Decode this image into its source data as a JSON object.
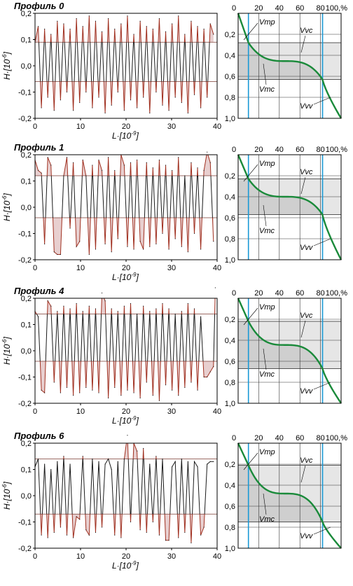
{
  "figure": {
    "ylabel": "H·[10",
    "ylabel_exp": "-6",
    "ylabel_close": "]",
    "xlabel": "L·[10",
    "xlabel_exp": "-9",
    "xlabel_close": "]",
    "percent_label": "100,%",
    "right_ticks_x": [
      "0",
      "20",
      "40",
      "60",
      "80"
    ],
    "right_ticks_y": [
      "0,2",
      "0,4",
      "0,6",
      "0,8",
      "1,0"
    ],
    "left_ticks_x": [
      "0",
      "10",
      "20",
      "30",
      "40"
    ],
    "left_ticks_y": [
      "0,2",
      "0,1",
      "0,0",
      "-0,1",
      "-0,2"
    ],
    "annotations": {
      "vmp": "Vmp",
      "vvc": "Vvc",
      "vmc": "Vmc",
      "vvv": "Vvv"
    },
    "colors": {
      "profile_line": "#1a1a1a",
      "fill_peaks": "#e8cfcf",
      "fill_edge": "#a03020",
      "bearing_curve": "#1a8a3a",
      "mr_lines": "#1a9ad6",
      "zone_fill": "#e6e6e6"
    }
  },
  "chart_data": [
    {
      "type": "line",
      "title": "Профиль 0",
      "xlim": [
        0,
        40
      ],
      "ylim": [
        -0.2,
        0.2
      ],
      "upper_threshold": 0.09,
      "lower_threshold": -0.06,
      "x": [
        0,
        0.7,
        1.4,
        2.1,
        2.8,
        3.5,
        4.2,
        4.9,
        5.6,
        6.3,
        7,
        7.7,
        8.4,
        9.1,
        9.8,
        10.5,
        11.2,
        11.9,
        12.6,
        13.3,
        14,
        14.7,
        15.4,
        16.1,
        16.8,
        17.5,
        18.2,
        18.9,
        19.6,
        20.3,
        21,
        21.7,
        22.4,
        23.1,
        23.8,
        24.5,
        25.2,
        25.9,
        26.6,
        27.3,
        28,
        28.7,
        29.4,
        30.1,
        30.8,
        31.5,
        32.2,
        32.9,
        33.6,
        34.3,
        35,
        35.7,
        36.4,
        37.1,
        37.8,
        38.5,
        39.2
      ],
      "y": [
        0.09,
        0.15,
        -0.16,
        0.14,
        -0.12,
        0.12,
        -0.17,
        0.17,
        -0.13,
        0.16,
        -0.1,
        0.14,
        -0.17,
        0.18,
        -0.14,
        0.15,
        -0.1,
        0.19,
        -0.16,
        0.17,
        -0.12,
        0.13,
        -0.18,
        0.18,
        -0.15,
        0.14,
        -0.1,
        0.16,
        -0.17,
        0.19,
        -0.13,
        0.12,
        -0.16,
        0.17,
        -0.12,
        0.15,
        -0.18,
        0.14,
        -0.1,
        0.18,
        -0.15,
        0.13,
        -0.17,
        0.16,
        -0.12,
        0.19,
        -0.14,
        0.12,
        -0.18,
        0.17,
        -0.11,
        0.15,
        -0.16,
        0.14,
        -0.12,
        0.16,
        0.12
      ],
      "bearing": {
        "mr1": 10,
        "mr2": 82,
        "c_upper": 0.28,
        "c_lower": 0.63,
        "xlim": [
          0,
          100
        ],
        "ylim": [
          0,
          1.0
        ]
      }
    },
    {
      "type": "line",
      "title": "Профиль 1",
      "xlim": [
        0,
        40
      ],
      "ylim": [
        -0.2,
        0.2
      ],
      "upper_threshold": 0.12,
      "lower_threshold": -0.04,
      "x": [
        0,
        0.7,
        1.4,
        2.1,
        2.8,
        3.5,
        4.2,
        4.9,
        5.6,
        6.3,
        7,
        7.7,
        8.4,
        9.1,
        9.8,
        10.5,
        11.2,
        11.9,
        12.6,
        13.3,
        14,
        14.7,
        15.4,
        16.1,
        16.8,
        17.5,
        18.2,
        18.9,
        19.6,
        20.3,
        21,
        21.7,
        22.4,
        23.1,
        23.8,
        24.5,
        25.2,
        25.9,
        26.6,
        27.3,
        28,
        28.7,
        29.4,
        30.1,
        30.8,
        31.5,
        32.2,
        32.9,
        33.6,
        34.3,
        35,
        35.7,
        36.4,
        37.1,
        37.8,
        38.5,
        39.2
      ],
      "y": [
        0.18,
        0.14,
        0.13,
        -0.14,
        0.19,
        0.16,
        -0.17,
        -0.18,
        -0.18,
        0.12,
        0.19,
        -0.08,
        0.17,
        -0.15,
        -0.13,
        0.18,
        0.12,
        -0.18,
        0.16,
        -0.16,
        0.18,
        0.14,
        -0.14,
        0.19,
        -0.17,
        0.14,
        -0.12,
        0.2,
        0.16,
        -0.15,
        0.17,
        -0.16,
        0.18,
        -0.13,
        -0.16,
        0.17,
        -0.15,
        0.15,
        -0.14,
        0.18,
        -0.1,
        0.16,
        -0.16,
        0.14,
        -0.12,
        0.19,
        -0.15,
        0.12,
        -0.17,
        0.17,
        -0.1,
        0.15,
        -0.16,
        0.14,
        0.21,
        0.17,
        -0.13
      ],
      "bearing": {
        "mr1": 10,
        "mr2": 82,
        "c_upper": 0.23,
        "c_lower": 0.57,
        "xlim": [
          0,
          100
        ],
        "ylim": [
          0,
          1.0
        ]
      }
    },
    {
      "type": "line",
      "title": "Профиль 4",
      "xlim": [
        0,
        40
      ],
      "ylim": [
        -0.2,
        0.2
      ],
      "upper_threshold": 0.14,
      "lower_threshold": -0.04,
      "x": [
        0,
        0.7,
        1.4,
        2.1,
        2.8,
        3.5,
        4.2,
        4.9,
        5.6,
        6.3,
        7,
        7.7,
        8.4,
        9.1,
        9.8,
        10.5,
        11.2,
        11.9,
        12.6,
        13.3,
        14,
        14.7,
        15.4,
        16.1,
        16.8,
        17.5,
        18.2,
        18.9,
        19.6,
        20.3,
        21,
        21.7,
        22.4,
        23.1,
        23.8,
        24.5,
        25.2,
        25.9,
        26.6,
        27.3,
        28,
        28.7,
        29.4,
        30.1,
        30.8,
        31.5,
        32.2,
        32.9,
        33.6,
        34.3,
        35,
        35.7,
        36.4,
        37.1,
        37.8,
        38.5,
        39.2,
        39.6
      ],
      "y": [
        0.15,
        0.13,
        -0.15,
        -0.16,
        0.19,
        0.17,
        -0.12,
        0.15,
        -0.16,
        0.17,
        -0.14,
        0.16,
        -0.17,
        0.18,
        -0.16,
        0.15,
        -0.14,
        0.17,
        -0.15,
        0.16,
        -0.16,
        0.22,
        0.19,
        -0.18,
        0.16,
        -0.14,
        0.15,
        -0.17,
        0.17,
        -0.15,
        0.18,
        -0.16,
        0.14,
        -0.18,
        0.17,
        -0.12,
        0.15,
        -0.17,
        0.16,
        -0.19,
        0.18,
        -0.13,
        0.16,
        -0.15,
        0.14,
        -0.17,
        0.15,
        -0.14,
        0.18,
        -0.12,
        0.16,
        -0.15,
        0.13,
        -0.1,
        -0.1,
        -0.08,
        -0.06,
        0.24
      ],
      "bearing": {
        "mr1": 10,
        "mr2": 82,
        "c_upper": 0.22,
        "c_lower": 0.67,
        "xlim": [
          0,
          100
        ],
        "ylim": [
          0,
          1.0
        ]
      }
    },
    {
      "type": "line",
      "title": "Профиль 6",
      "xlim": [
        0,
        40
      ],
      "ylim": [
        -0.2,
        0.2
      ],
      "upper_threshold": 0.14,
      "lower_threshold": -0.07,
      "x": [
        0,
        0.7,
        1.4,
        2.1,
        2.8,
        3.5,
        4.2,
        4.9,
        5.6,
        6.3,
        7,
        7.7,
        8.4,
        9.1,
        9.8,
        10.5,
        11.2,
        11.9,
        12.6,
        13.3,
        14,
        14.7,
        15.4,
        16.1,
        16.8,
        17.5,
        18.2,
        18.9,
        19.6,
        20.3,
        21,
        21.7,
        22.4,
        23.1,
        23.8,
        24.5,
        25.2,
        25.9,
        26.6,
        27.3,
        28,
        28.7,
        29.4,
        30.1,
        30.8,
        31.5,
        32.2,
        32.9,
        33.6,
        34.3,
        35,
        35.7,
        36.4,
        37.1,
        37.8,
        38.5,
        39.2
      ],
      "y": [
        0.11,
        0.14,
        -0.15,
        0.12,
        -0.16,
        0.1,
        -0.14,
        0.13,
        -0.12,
        0.15,
        -0.15,
        0.12,
        -0.16,
        -0.08,
        -0.09,
        0.15,
        -0.13,
        -0.15,
        0.14,
        -0.14,
        0.13,
        -0.12,
        0.12,
        0.14,
        0.1,
        -0.15,
        0.13,
        -0.16,
        0.14,
        0.23,
        -0.1,
        0.2,
        0.17,
        -0.13,
        0.18,
        -0.14,
        0.12,
        -0.1,
        0.15,
        -0.15,
        0.14,
        -0.17,
        -0.17,
        0.11,
        0.13,
        -0.16,
        0.14,
        -0.14,
        0.13,
        -0.18,
        0.13,
        0.11,
        -0.15,
        -0.12,
        0.12,
        0.13,
        0.13
      ],
      "bearing": {
        "mr1": 10,
        "mr2": 82,
        "c_upper": 0.21,
        "c_lower": 0.75,
        "xlim": [
          0,
          100
        ],
        "ylim": [
          0,
          1.0
        ]
      }
    }
  ]
}
